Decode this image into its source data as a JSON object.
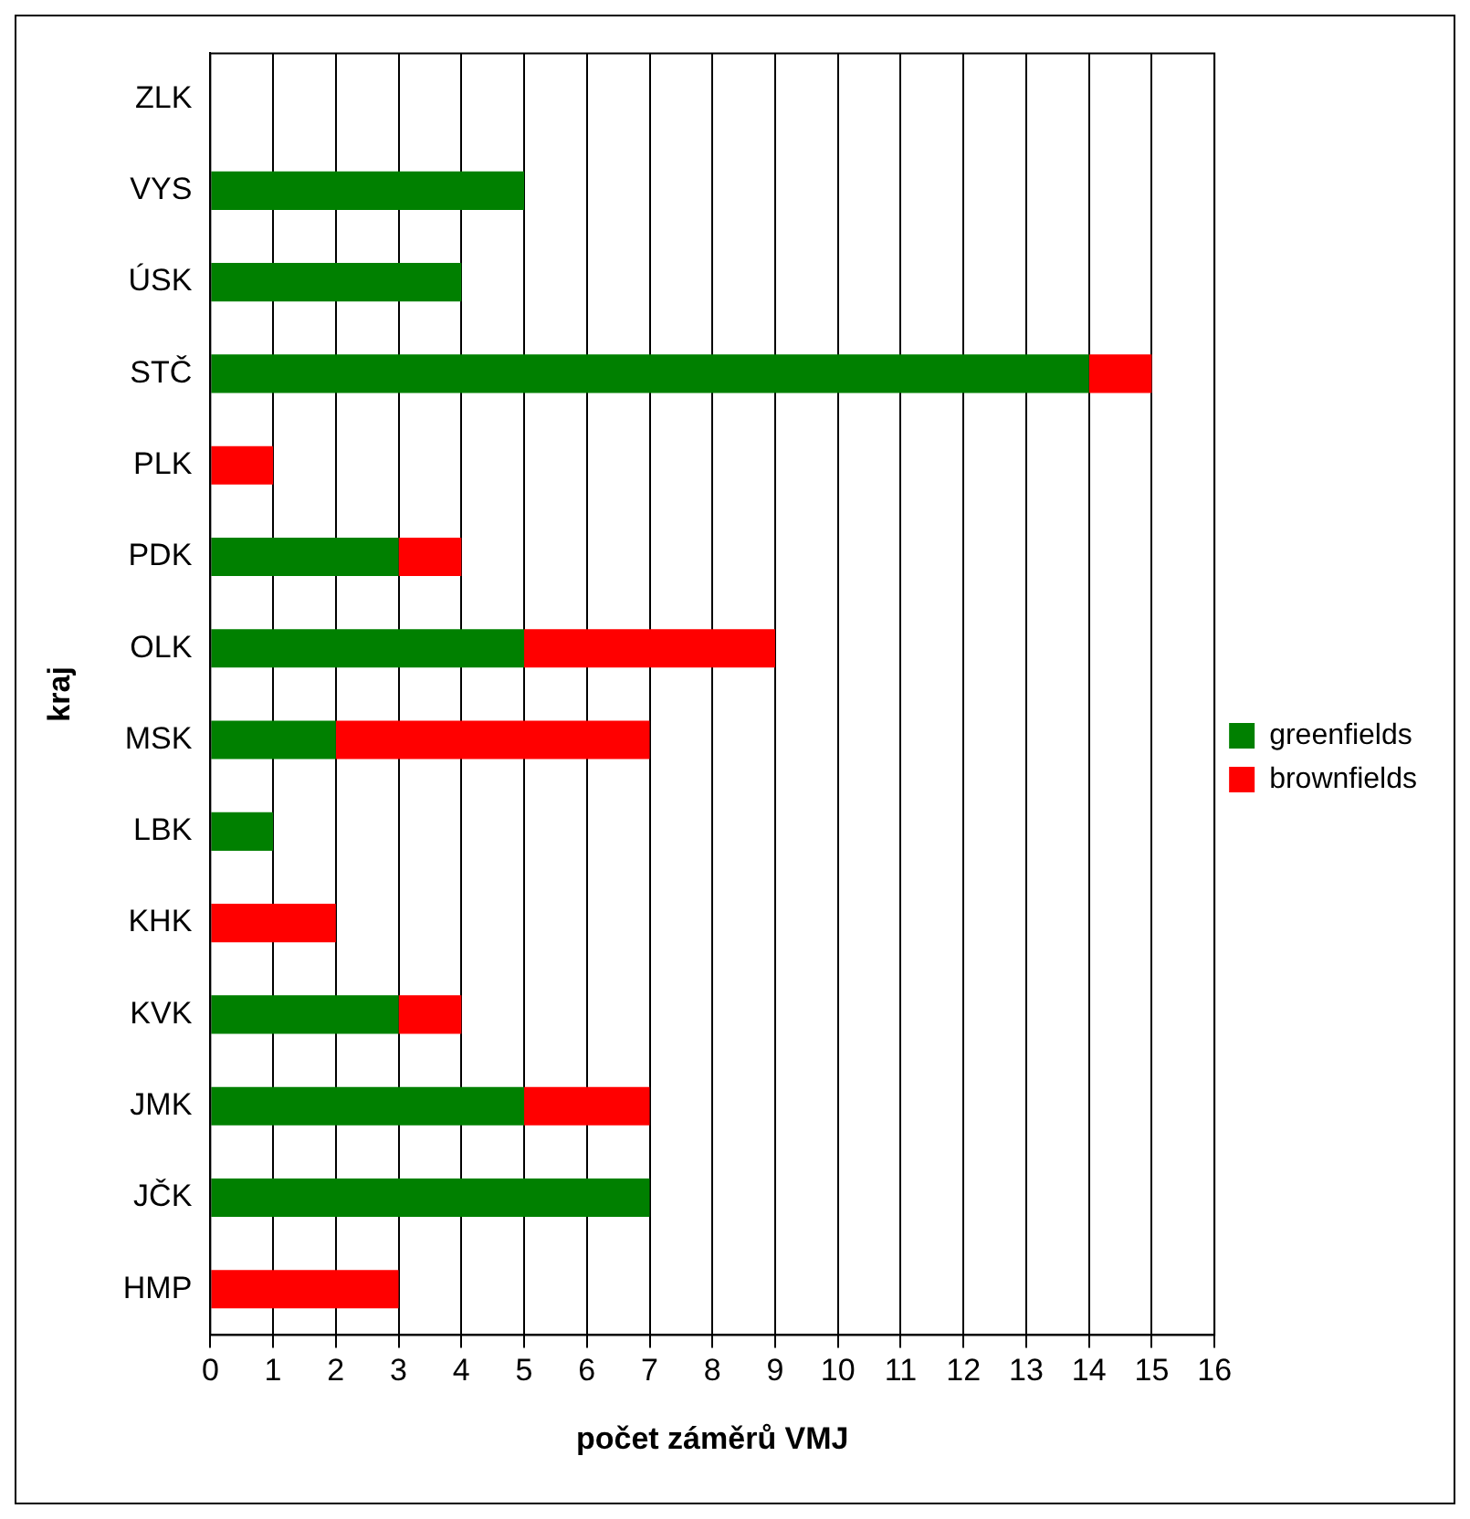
{
  "chart_data": {
    "type": "bar",
    "orientation": "horizontal",
    "stacked": true,
    "xlabel": "počet záměrů VMJ",
    "ylabel": "kraj",
    "categories": [
      "ZLK",
      "VYS",
      "ÚSK",
      "STČ",
      "PLK",
      "PDK",
      "OLK",
      "MSK",
      "LBK",
      "KHK",
      "KVK",
      "JMK",
      "JČK",
      "HMP"
    ],
    "series": [
      {
        "name": "greenfields",
        "color": "#008000",
        "values": [
          0,
          5,
          4,
          14,
          0,
          3,
          5,
          2,
          1,
          0,
          3,
          5,
          7,
          0
        ]
      },
      {
        "name": "brownfields",
        "color": "#ff0000",
        "values": [
          0,
          0,
          0,
          1,
          1,
          1,
          4,
          5,
          0,
          2,
          1,
          2,
          0,
          3
        ]
      }
    ],
    "xlim": [
      0,
      16
    ],
    "xticks": [
      0,
      1,
      2,
      3,
      4,
      5,
      6,
      7,
      8,
      9,
      10,
      11,
      12,
      13,
      14,
      15,
      16
    ],
    "grid": "x",
    "legend": "right"
  }
}
